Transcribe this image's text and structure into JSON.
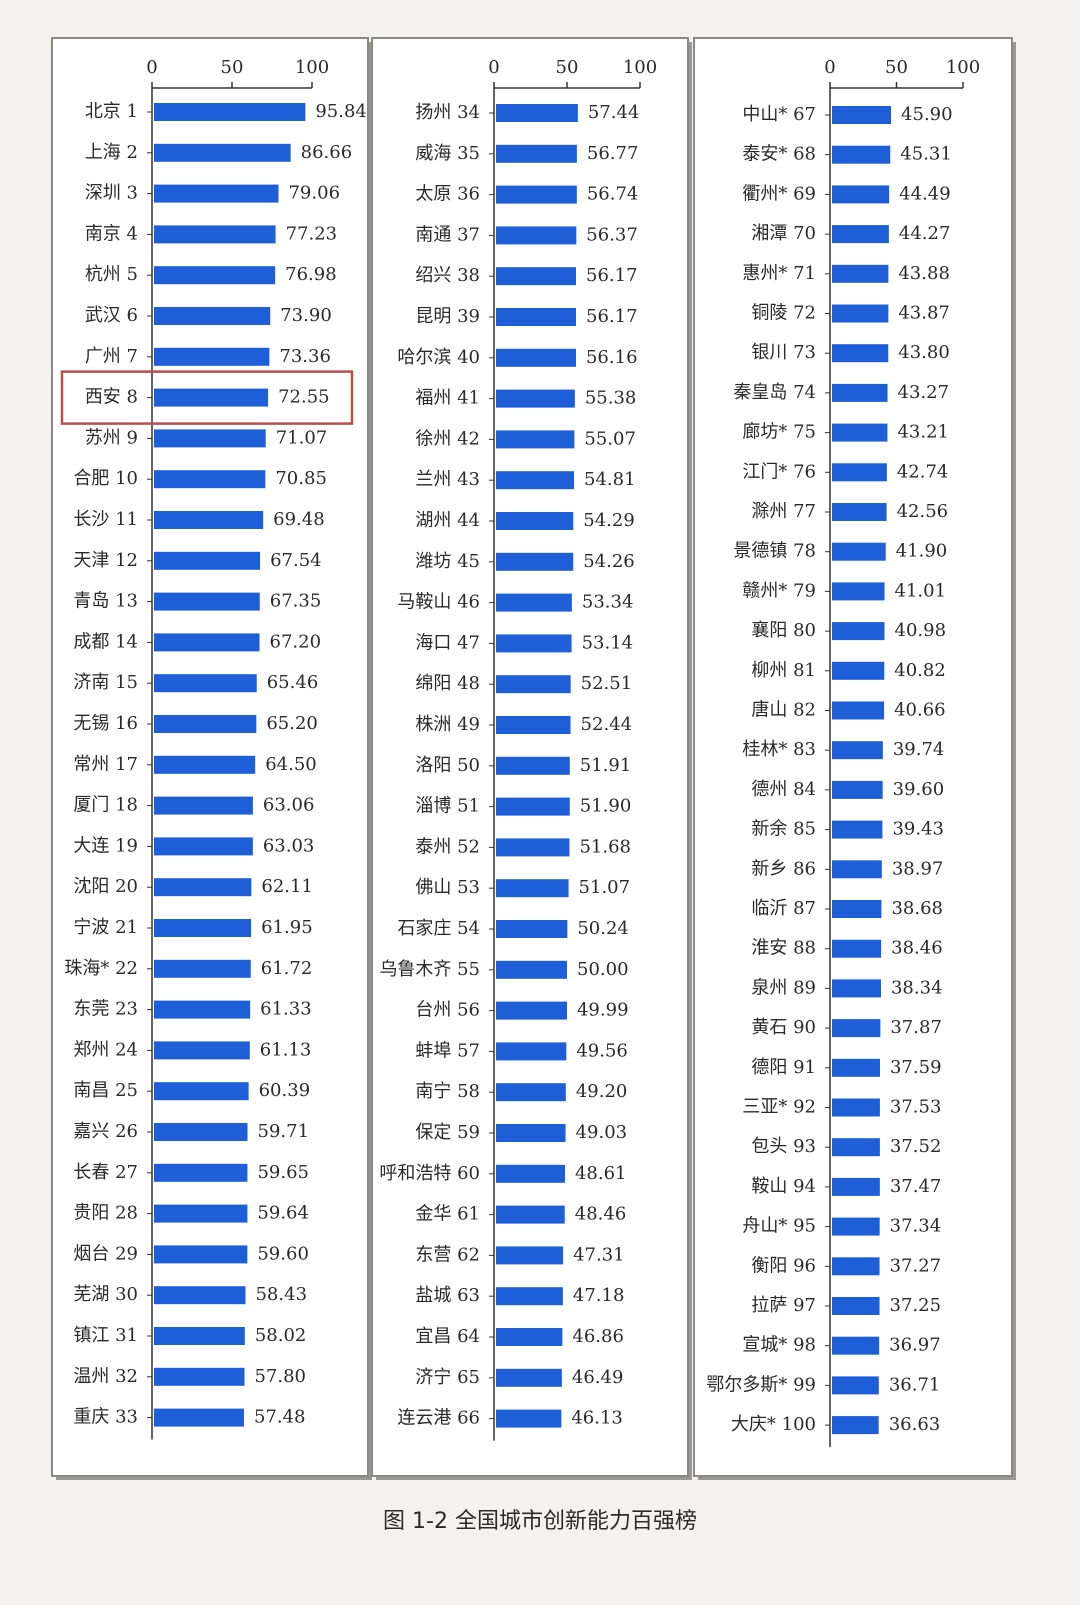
{
  "caption": "图 1-2 全国城市创新能力百强榜",
  "chart_data": [
    {
      "type": "bar",
      "orientation": "horizontal",
      "color": "#1e5fd8",
      "highlight": 7,
      "highlight_color": "#b5514a",
      "xlim": [
        0,
        100
      ],
      "xticks": [
        0,
        50,
        100
      ],
      "categories": [
        "北京 1",
        "上海 2",
        "深圳 3",
        "南京 4",
        "杭州 5",
        "武汉 6",
        "广州 7",
        "西安 8",
        "苏州 9",
        "合肥 10",
        "长沙 11",
        "天津 12",
        "青岛 13",
        "成都 14",
        "济南 15",
        "无锡 16",
        "常州 17",
        "厦门 18",
        "大连 19",
        "沈阳 20",
        "宁波 21",
        "珠海* 22",
        "东莞 23",
        "郑州 24",
        "南昌 25",
        "嘉兴 26",
        "长春 27",
        "贵阳 28",
        "烟台 29",
        "芜湖 30",
        "镇江 31",
        "温州 32",
        "重庆 33"
      ],
      "values": [
        95.84,
        86.66,
        79.06,
        77.23,
        76.98,
        73.9,
        73.36,
        72.55,
        71.07,
        70.85,
        69.48,
        67.54,
        67.35,
        67.2,
        65.46,
        65.2,
        64.5,
        63.06,
        63.03,
        62.11,
        61.95,
        61.72,
        61.33,
        61.13,
        60.39,
        59.71,
        59.65,
        59.64,
        59.6,
        58.43,
        58.02,
        57.8,
        57.48
      ],
      "value_labels": [
        "95.84",
        "86.66",
        "79.06",
        "77.23",
        "76.98",
        "73.90",
        "73.36",
        "72.55",
        "71.07",
        "70.85",
        "69.48",
        "67.54",
        "67.35",
        "67.20",
        "65.46",
        "65.20",
        "64.50",
        "63.06",
        "63.03",
        "62.11",
        "61.95",
        "61.72",
        "61.33",
        "61.13",
        "60.39",
        "59.71",
        "59.65",
        "59.64",
        "59.60",
        "58.43",
        "58.02",
        "57.80",
        "57.48"
      ]
    },
    {
      "type": "bar",
      "orientation": "horizontal",
      "color": "#1e5fd8",
      "xlim": [
        0,
        100
      ],
      "xticks": [
        0,
        50,
        100
      ],
      "categories": [
        "扬州 34",
        "威海 35",
        "太原 36",
        "南通 37",
        "绍兴 38",
        "昆明 39",
        "哈尔滨 40",
        "福州 41",
        "徐州 42",
        "兰州 43",
        "湖州 44",
        "潍坊 45",
        "马鞍山 46",
        "海口 47",
        "绵阳 48",
        "株洲 49",
        "洛阳 50",
        "淄博 51",
        "泰州 52",
        "佛山 53",
        "石家庄 54",
        "乌鲁木齐 55",
        "台州 56",
        "蚌埠 57",
        "南宁 58",
        "保定 59",
        "呼和浩特 60",
        "金华 61",
        "东营 62",
        "盐城 63",
        "宜昌 64",
        "济宁 65",
        "连云港 66"
      ],
      "values": [
        57.44,
        56.77,
        56.74,
        56.37,
        56.17,
        56.17,
        56.16,
        55.38,
        55.07,
        54.81,
        54.29,
        54.26,
        53.34,
        53.14,
        52.51,
        52.44,
        51.91,
        51.9,
        51.68,
        51.07,
        50.24,
        50,
        49.99,
        49.56,
        49.2,
        49.03,
        48.61,
        48.46,
        47.31,
        47.18,
        46.86,
        46.49,
        46.13
      ],
      "value_labels": [
        "57.44",
        "56.77",
        "56.74",
        "56.37",
        "56.17",
        "56.17",
        "56.16",
        "55.38",
        "55.07",
        "54.81",
        "54.29",
        "54.26",
        "53.34",
        "53.14",
        "52.51",
        "52.44",
        "51.91",
        "51.90",
        "51.68",
        "51.07",
        "50.24",
        "50.00",
        "49.99",
        "49.56",
        "49.20",
        "49.03",
        "48.61",
        "48.46",
        "47.31",
        "47.18",
        "46.86",
        "46.49",
        "46.13"
      ]
    },
    {
      "type": "bar",
      "orientation": "horizontal",
      "color": "#1e5fd8",
      "xlim": [
        0,
        100
      ],
      "xticks": [
        0,
        50,
        100
      ],
      "categories": [
        "中山* 67",
        "泰安* 68",
        "衢州* 69",
        "湘潭 70",
        "惠州* 71",
        "铜陵 72",
        "银川 73",
        "秦皇岛 74",
        "廊坊* 75",
        "江门* 76",
        "滁州 77",
        "景德镇 78",
        "赣州* 79",
        "襄阳 80",
        "柳州 81",
        "唐山 82",
        "桂林* 83",
        "德州 84",
        "新余 85",
        "新乡 86",
        "临沂 87",
        "淮安 88",
        "泉州 89",
        "黄石 90",
        "德阳 91",
        "三亚* 92",
        "包头 93",
        "鞍山 94",
        "舟山* 95",
        "衡阳 96",
        "拉萨 97",
        "宣城* 98",
        "鄂尔多斯* 99",
        "大庆* 100"
      ],
      "values": [
        45.9,
        45.31,
        44.49,
        44.27,
        43.88,
        43.87,
        43.8,
        43.27,
        43.21,
        42.74,
        42.56,
        41.9,
        41.01,
        40.98,
        40.82,
        40.66,
        39.74,
        39.6,
        39.43,
        38.97,
        38.68,
        38.46,
        38.34,
        37.87,
        37.59,
        37.53,
        37.52,
        37.47,
        37.34,
        37.27,
        37.25,
        36.97,
        36.71,
        36.63
      ],
      "value_labels": [
        "45.90",
        "45.31",
        "44.49",
        "44.27",
        "43.88",
        "43.87",
        "43.80",
        "43.27",
        "43.21",
        "42.74",
        "42.56",
        "41.90",
        "41.01",
        "40.98",
        "40.82",
        "40.66",
        "39.74",
        "39.60",
        "39.43",
        "38.97",
        "38.68",
        "38.46",
        "38.34",
        "37.87",
        "37.59",
        "37.53",
        "37.52",
        "37.47",
        "37.34",
        "37.27",
        "37.25",
        "36.97",
        "36.71",
        "36.63"
      ]
    }
  ]
}
